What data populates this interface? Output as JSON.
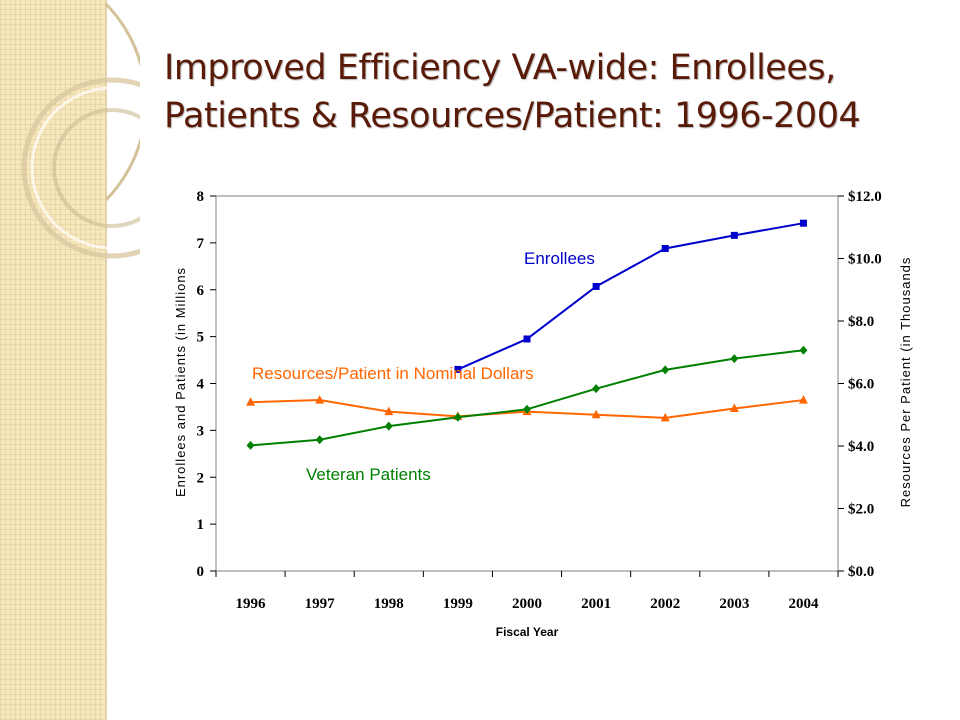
{
  "slide": {
    "title_line1": "Improved Efficiency VA-wide: Enrollees,",
    "title_line2": "Patients & Resources/Patient: 1996-2004"
  },
  "theme": {
    "title_color": "#5a1a08",
    "band_color": "#f6e7bf"
  },
  "chart_data": {
    "type": "line",
    "title": "",
    "xlabel": "Fiscal Year",
    "ylabel_left": "Enrollees and Patients (in Millions",
    "ylabel_right": "Resources Per Patient (in Thousands",
    "categories": [
      "1996",
      "1997",
      "1998",
      "1999",
      "2000",
      "2001",
      "2002",
      "2003",
      "2004"
    ],
    "y_left": {
      "min": 0,
      "max": 8,
      "ticks": [
        0,
        1,
        2,
        3,
        4,
        5,
        6,
        7,
        8
      ],
      "tick_labels": [
        "0",
        "1",
        "2",
        "3",
        "4",
        "5",
        "6",
        "7",
        "8"
      ]
    },
    "y_right": {
      "min": 0,
      "max": 12,
      "ticks": [
        0,
        2,
        4,
        6,
        8,
        10,
        12
      ],
      "tick_labels": [
        "$0.0",
        "$2.0",
        "$4.0",
        "$6.0",
        "$8.0",
        "$10.0",
        "$12.0"
      ]
    },
    "grid": false,
    "legend": "inline labels",
    "series": [
      {
        "name": "Enrollees",
        "axis": "left",
        "color": "#0000cc",
        "marker": "square",
        "values": [
          null,
          null,
          null,
          4.3,
          4.95,
          6.07,
          6.88,
          7.16,
          7.42
        ]
      },
      {
        "name": "Resources/Patient in Nominal Dollars",
        "axis": "right",
        "color": "#ff6600",
        "marker": "triangle",
        "values": [
          5.4,
          5.47,
          5.1,
          4.95,
          5.1,
          5.0,
          4.9,
          5.2,
          5.47
        ]
      },
      {
        "name": "Veteran Patients",
        "axis": "left",
        "color": "#008000",
        "marker": "diamond",
        "values": [
          2.68,
          2.8,
          3.09,
          3.28,
          3.45,
          3.89,
          4.29,
          4.53,
          4.71
        ]
      }
    ]
  }
}
